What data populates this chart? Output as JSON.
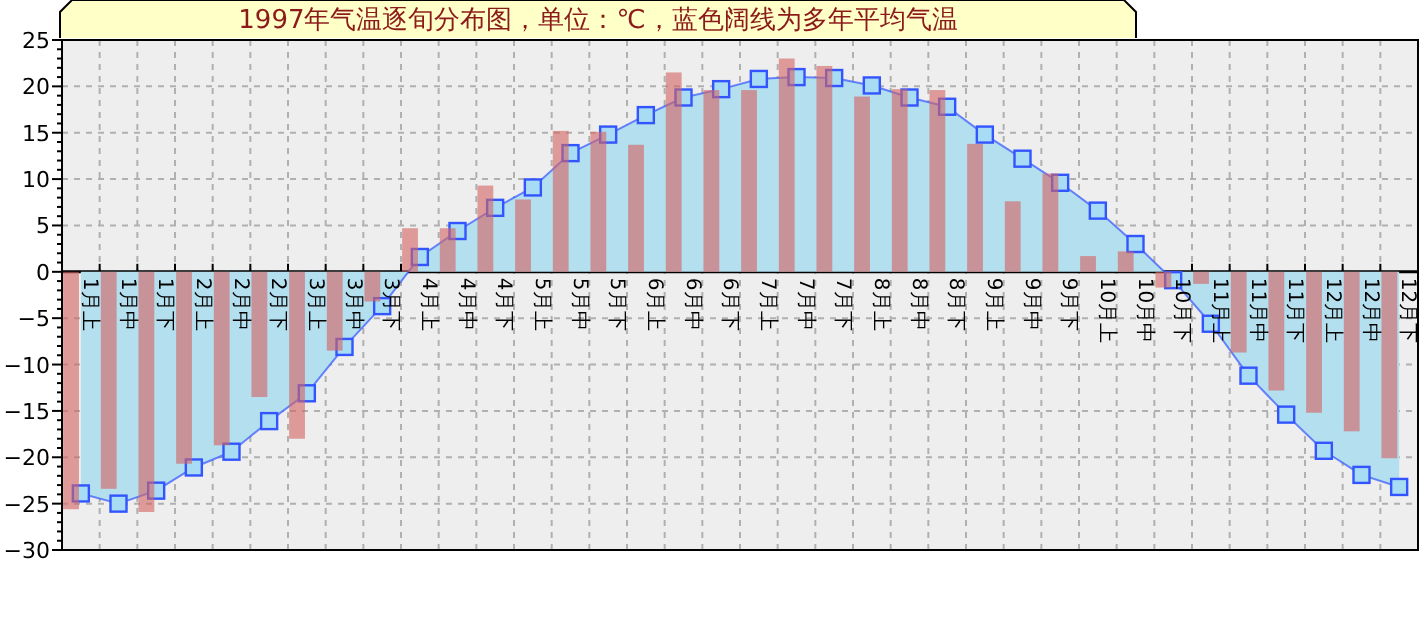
{
  "chart_data": {
    "type": "bar",
    "title": "1997年气温逐旬分布图，单位：℃，蓝色阔线为多年平均气温",
    "categories": [
      "1月上",
      "1月中",
      "1月下",
      "2月上",
      "2月中",
      "2月下",
      "3月上",
      "3月中",
      "3月下",
      "4月上",
      "4月中",
      "4月下",
      "5月上",
      "5月中",
      "5月下",
      "6月上",
      "6月中",
      "6月下",
      "7月上",
      "7月中",
      "7月下",
      "8月上",
      "8月中",
      "8月下",
      "9月上",
      "9月中",
      "9月下",
      "10月上",
      "10月中",
      "10月下",
      "11月上",
      "11月中",
      "11月下",
      "12月上",
      "12月中",
      "12月下"
    ],
    "series": [
      {
        "type": "bar",
        "color": "#d46464",
        "values": [
          -25.6,
          -23.4,
          -25.9,
          -20.7,
          -18.7,
          -13.5,
          -18.0,
          -8.5,
          -3.2,
          4.7,
          4.7,
          9.3,
          7.8,
          15.2,
          15.1,
          13.7,
          21.5,
          19.6,
          19.6,
          23.0,
          22.2,
          18.9,
          19.7,
          19.6,
          13.8,
          7.6,
          10.6,
          1.7,
          2.2,
          -1.7,
          -1.3,
          -8.7,
          -12.8,
          -15.2,
          -17.2,
          -20.1
        ]
      },
      {
        "type": "area",
        "color": "#3355ff",
        "marker": "square",
        "values": [
          -23.9,
          -25.0,
          -23.6,
          -21.1,
          -19.4,
          -16.1,
          -13.1,
          -8.1,
          -3.7,
          1.6,
          4.4,
          6.9,
          9.1,
          12.8,
          14.8,
          16.9,
          18.8,
          19.7,
          20.8,
          21.0,
          20.9,
          20.1,
          18.8,
          17.8,
          14.8,
          12.2,
          9.6,
          6.6,
          3.0,
          -0.9,
          -5.6,
          -11.2,
          -15.4,
          -19.3,
          -21.9,
          -23.2
        ]
      }
    ],
    "ylim": [
      -30,
      25
    ],
    "yticks": [
      -30,
      -25,
      -20,
      -15,
      -10,
      -5,
      0,
      5,
      10,
      15,
      20,
      25
    ],
    "grid": true
  }
}
